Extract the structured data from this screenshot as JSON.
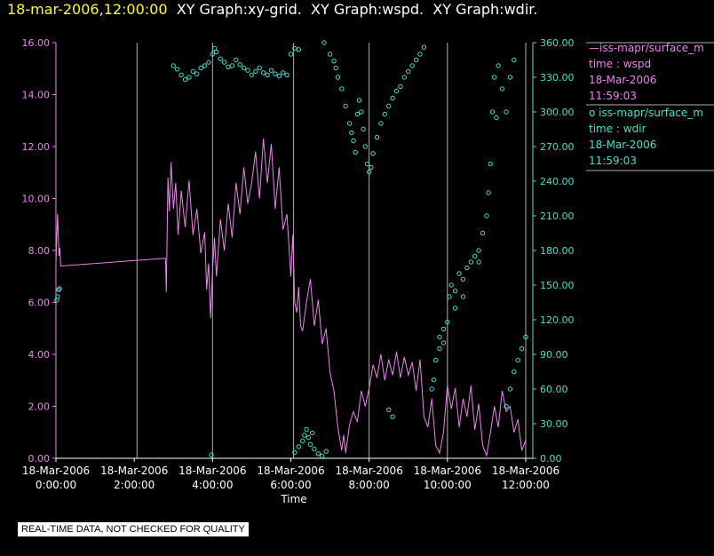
{
  "header": {
    "date": "18-mar-2006,12:00:00",
    "rest": "  XY Graph:xy-grid.  XY Graph:wspd.  XY Graph:wdir."
  },
  "legend": {
    "series1": {
      "line": "—iss-mapr/surface_m",
      "field": "time : wspd",
      "date": "18-Mar-2006",
      "time": "11:59:03"
    },
    "series2": {
      "line": "o iss-mapr/surface_m",
      "field": "time : wdir",
      "date": "18-Mar-2006",
      "time": "11:59:03"
    }
  },
  "footer": {
    "qc_note": "REAL-TIME DATA, NOT CHECKED FOR QUALITY"
  },
  "colors": {
    "wspd": "#ee82ee",
    "wdir": "#40e0d0",
    "title_date": "#ffff00",
    "grid": "#b0b0b0"
  },
  "chart_data": {
    "type": "line",
    "xlabel": "Time",
    "x_unit": "hours since 18-Mar-2006 0:00:00",
    "xlim": [
      0,
      12
    ],
    "x_ticks": [
      {
        "v": 0,
        "d": "18-Mar-2006",
        "t": "0:00:00"
      },
      {
        "v": 2,
        "d": "18-Mar-2006",
        "t": "2:00:00"
      },
      {
        "v": 4,
        "d": "18-Mar-2006",
        "t": "4:00:00"
      },
      {
        "v": 6,
        "d": "18-Mar-2006",
        "t": "6:00:00"
      },
      {
        "v": 8,
        "d": "18-Mar-2006",
        "t": "8:00:00"
      },
      {
        "v": 10,
        "d": "18-Mar-2006",
        "t": "10:00:00"
      },
      {
        "v": 12,
        "d": "18-Mar-2006",
        "t": "12:00:00"
      }
    ],
    "grid_x": [
      2.07,
      4.0,
      6.07,
      8.0,
      10.0,
      12.0
    ],
    "y_left": {
      "lim": [
        0,
        16
      ],
      "ticks": [
        "0.00",
        "2.00",
        "4.00",
        "6.00",
        "8.00",
        "10.00",
        "12.00",
        "14.00",
        "16.00"
      ]
    },
    "y_right": {
      "lim": [
        0,
        360
      ],
      "ticks": [
        "0.00",
        "30.00",
        "60.00",
        "90.00",
        "120.00",
        "150.00",
        "180.00",
        "210.00",
        "240.00",
        "270.00",
        "300.00",
        "330.00",
        "360.00"
      ]
    },
    "series": [
      {
        "name": "time : wspd",
        "kind": "line",
        "axis": "left",
        "points": [
          [
            0.0,
            7.5
          ],
          [
            0.04,
            9.4
          ],
          [
            0.08,
            7.8
          ],
          [
            0.1,
            8.1
          ],
          [
            0.12,
            7.4
          ],
          [
            2.8,
            7.7
          ],
          [
            2.82,
            6.4
          ],
          [
            2.86,
            10.8
          ],
          [
            2.9,
            9.5
          ],
          [
            2.94,
            11.4
          ],
          [
            3.0,
            9.6
          ],
          [
            3.06,
            10.6
          ],
          [
            3.12,
            8.6
          ],
          [
            3.2,
            10.3
          ],
          [
            3.3,
            8.9
          ],
          [
            3.4,
            10.7
          ],
          [
            3.5,
            8.6
          ],
          [
            3.6,
            9.6
          ],
          [
            3.7,
            7.9
          ],
          [
            3.8,
            8.7
          ],
          [
            3.85,
            6.5
          ],
          [
            3.9,
            7.5
          ],
          [
            3.95,
            5.4
          ],
          [
            4.0,
            7.2
          ],
          [
            4.05,
            8.5
          ],
          [
            4.1,
            7.0
          ],
          [
            4.2,
            9.2
          ],
          [
            4.3,
            8.0
          ],
          [
            4.4,
            9.8
          ],
          [
            4.5,
            8.5
          ],
          [
            4.6,
            10.6
          ],
          [
            4.7,
            9.4
          ],
          [
            4.8,
            11.2
          ],
          [
            4.9,
            9.8
          ],
          [
            5.0,
            10.6
          ],
          [
            5.1,
            11.8
          ],
          [
            5.2,
            10.0
          ],
          [
            5.3,
            12.3
          ],
          [
            5.4,
            10.6
          ],
          [
            5.5,
            12.1
          ],
          [
            5.6,
            9.6
          ],
          [
            5.7,
            11.2
          ],
          [
            5.8,
            8.8
          ],
          [
            5.9,
            9.4
          ],
          [
            6.0,
            7.0
          ],
          [
            6.05,
            8.6
          ],
          [
            6.1,
            6.0
          ],
          [
            6.15,
            5.6
          ],
          [
            6.2,
            6.6
          ],
          [
            6.25,
            5.1
          ],
          [
            6.3,
            4.9
          ],
          [
            6.4,
            6.0
          ],
          [
            6.5,
            6.9
          ],
          [
            6.6,
            5.1
          ],
          [
            6.7,
            6.1
          ],
          [
            6.8,
            4.4
          ],
          [
            6.9,
            5.0
          ],
          [
            7.0,
            3.3
          ],
          [
            7.1,
            2.6
          ],
          [
            7.2,
            1.2
          ],
          [
            7.3,
            0.3
          ],
          [
            7.35,
            0.9
          ],
          [
            7.4,
            0.2
          ],
          [
            7.5,
            1.3
          ],
          [
            7.6,
            1.8
          ],
          [
            7.7,
            1.4
          ],
          [
            7.8,
            2.6
          ],
          [
            7.9,
            2.0
          ],
          [
            8.0,
            2.7
          ],
          [
            8.1,
            3.6
          ],
          [
            8.2,
            3.1
          ],
          [
            8.3,
            4.0
          ],
          [
            8.4,
            3.0
          ],
          [
            8.5,
            3.8
          ],
          [
            8.6,
            3.2
          ],
          [
            8.7,
            4.1
          ],
          [
            8.8,
            3.1
          ],
          [
            8.9,
            3.9
          ],
          [
            9.0,
            3.2
          ],
          [
            9.1,
            3.7
          ],
          [
            9.2,
            2.6
          ],
          [
            9.3,
            3.8
          ],
          [
            9.4,
            1.6
          ],
          [
            9.5,
            1.2
          ],
          [
            9.6,
            2.3
          ],
          [
            9.7,
            0.5
          ],
          [
            9.8,
            0.2
          ],
          [
            9.9,
            1.0
          ],
          [
            10.0,
            2.8
          ],
          [
            10.1,
            1.9
          ],
          [
            10.2,
            2.7
          ],
          [
            10.3,
            1.2
          ],
          [
            10.4,
            2.3
          ],
          [
            10.5,
            1.6
          ],
          [
            10.6,
            2.8
          ],
          [
            10.7,
            1.1
          ],
          [
            10.8,
            2.1
          ],
          [
            10.9,
            0.5
          ],
          [
            11.0,
            0.1
          ],
          [
            11.1,
            1.0
          ],
          [
            11.2,
            2.0
          ],
          [
            11.3,
            1.2
          ],
          [
            11.4,
            2.6
          ],
          [
            11.5,
            1.8
          ],
          [
            11.6,
            2.0
          ],
          [
            11.7,
            1.0
          ],
          [
            11.8,
            1.5
          ],
          [
            11.9,
            0.3
          ],
          [
            12.0,
            0.7
          ]
        ]
      },
      {
        "name": "time : wdir",
        "kind": "scatter",
        "axis": "right",
        "points": [
          [
            0.02,
            137
          ],
          [
            0.04,
            140
          ],
          [
            0.07,
            146
          ],
          [
            0.09,
            147
          ],
          [
            3.0,
            340
          ],
          [
            3.1,
            337
          ],
          [
            3.2,
            332
          ],
          [
            3.3,
            328
          ],
          [
            3.4,
            330
          ],
          [
            3.5,
            335
          ],
          [
            3.6,
            333
          ],
          [
            3.7,
            338
          ],
          [
            3.8,
            340
          ],
          [
            3.9,
            343
          ],
          [
            4.0,
            350
          ],
          [
            4.05,
            355
          ],
          [
            4.1,
            352
          ],
          [
            4.2,
            346
          ],
          [
            4.3,
            343
          ],
          [
            4.4,
            339
          ],
          [
            4.5,
            340
          ],
          [
            4.6,
            345
          ],
          [
            4.7,
            341
          ],
          [
            4.8,
            338
          ],
          [
            4.9,
            336
          ],
          [
            5.0,
            332
          ],
          [
            5.1,
            335
          ],
          [
            5.2,
            338
          ],
          [
            5.3,
            334
          ],
          [
            5.4,
            332
          ],
          [
            5.5,
            336
          ],
          [
            5.6,
            333
          ],
          [
            5.7,
            331
          ],
          [
            5.8,
            334
          ],
          [
            5.9,
            332
          ],
          [
            6.0,
            350
          ],
          [
            6.1,
            355
          ],
          [
            6.2,
            354
          ],
          [
            3.97,
            3
          ],
          [
            6.1,
            5
          ],
          [
            6.2,
            10
          ],
          [
            6.3,
            15
          ],
          [
            6.35,
            20
          ],
          [
            6.4,
            25
          ],
          [
            6.45,
            18
          ],
          [
            6.5,
            12
          ],
          [
            6.55,
            22
          ],
          [
            6.6,
            8
          ],
          [
            6.7,
            4
          ],
          [
            6.8,
            2
          ],
          [
            6.9,
            6
          ],
          [
            6.85,
            360
          ],
          [
            7.0,
            350
          ],
          [
            7.1,
            344
          ],
          [
            7.15,
            338
          ],
          [
            7.2,
            330
          ],
          [
            7.3,
            320
          ],
          [
            7.4,
            305
          ],
          [
            7.5,
            290
          ],
          [
            7.55,
            282
          ],
          [
            7.6,
            275
          ],
          [
            7.65,
            265
          ],
          [
            7.7,
            298
          ],
          [
            7.75,
            310
          ],
          [
            7.8,
            300
          ],
          [
            7.85,
            285
          ],
          [
            7.9,
            270
          ],
          [
            7.95,
            255
          ],
          [
            8.0,
            248
          ],
          [
            8.05,
            252
          ],
          [
            8.1,
            264
          ],
          [
            8.2,
            278
          ],
          [
            8.3,
            290
          ],
          [
            8.4,
            298
          ],
          [
            8.5,
            305
          ],
          [
            8.6,
            312
          ],
          [
            8.7,
            318
          ],
          [
            8.8,
            322
          ],
          [
            8.9,
            330
          ],
          [
            9.0,
            335
          ],
          [
            9.1,
            340
          ],
          [
            9.2,
            345
          ],
          [
            9.3,
            350
          ],
          [
            9.4,
            356
          ],
          [
            8.5,
            42
          ],
          [
            8.6,
            36
          ],
          [
            9.6,
            60
          ],
          [
            9.65,
            68
          ],
          [
            9.7,
            85
          ],
          [
            9.8,
            105
          ],
          [
            9.9,
            112
          ],
          [
            10.0,
            118
          ],
          [
            10.05,
            140
          ],
          [
            10.1,
            150
          ],
          [
            10.2,
            145
          ],
          [
            10.3,
            160
          ],
          [
            10.4,
            155
          ],
          [
            10.5,
            165
          ],
          [
            10.6,
            170
          ],
          [
            10.7,
            175
          ],
          [
            10.8,
            180
          ],
          [
            10.9,
            195
          ],
          [
            11.0,
            210
          ],
          [
            11.1,
            255
          ],
          [
            11.15,
            300
          ],
          [
            11.2,
            330
          ],
          [
            11.3,
            340
          ],
          [
            11.4,
            320
          ],
          [
            11.5,
            300
          ],
          [
            11.6,
            330
          ],
          [
            11.7,
            345
          ],
          [
            11.5,
            45
          ],
          [
            11.6,
            60
          ],
          [
            11.7,
            75
          ],
          [
            11.8,
            85
          ],
          [
            11.9,
            95
          ],
          [
            12.0,
            105
          ],
          [
            10.8,
            170
          ],
          [
            10.4,
            140
          ],
          [
            10.2,
            130
          ],
          [
            9.8,
            95
          ],
          [
            9.9,
            100
          ],
          [
            11.05,
            230
          ],
          [
            11.25,
            295
          ]
        ]
      }
    ],
    "grid": true,
    "legend_position": "right"
  }
}
